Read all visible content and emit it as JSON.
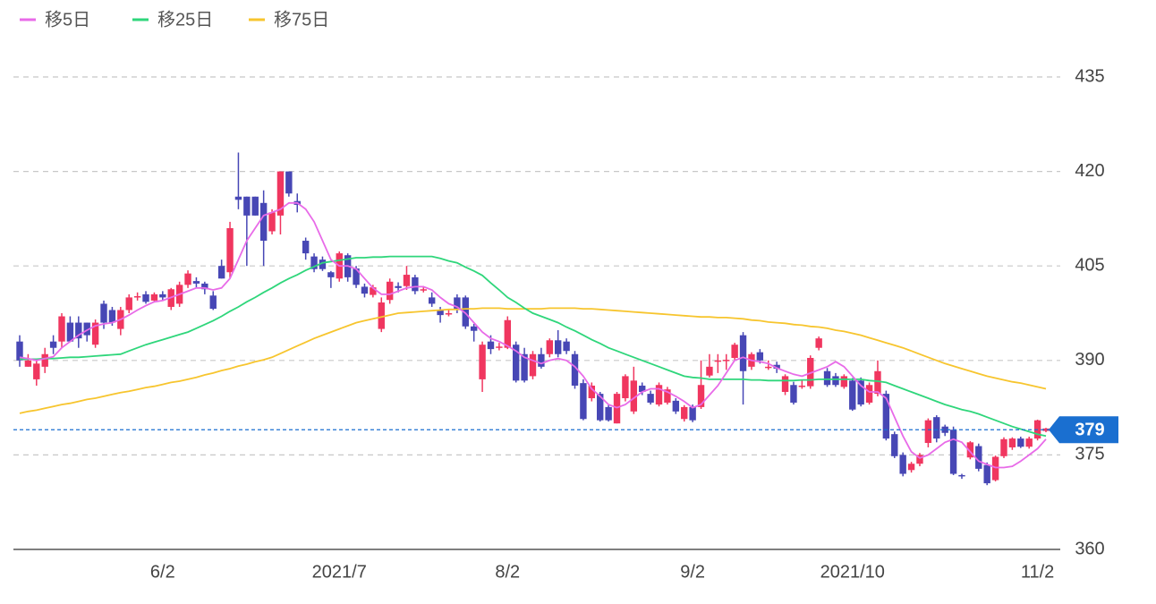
{
  "chart_data": {
    "type": "candlestick",
    "series": [
      {
        "name": "移5日",
        "color": "#e86be8",
        "values": [
          390.5,
          390.3,
          390,
          390.3,
          390.6,
          392,
          393,
          394,
          394.8,
          395.5,
          395.8,
          396,
          396.5,
          397.2,
          398,
          398.7,
          399.3,
          399.5,
          400,
          400.5,
          401,
          401.5,
          401.5,
          401.2,
          401.5,
          403,
          406,
          409,
          411,
          413,
          413.5,
          414,
          415,
          415,
          414,
          412,
          409,
          406,
          405,
          405,
          404.5,
          403,
          401.5,
          400.5,
          400.5,
          401,
          401.5,
          401.7,
          401.7,
          401.2,
          400,
          399,
          398.5,
          397.5,
          396,
          394.5,
          393.5,
          393,
          392.3,
          391.5,
          390.5,
          390,
          389.5,
          390,
          390.3,
          390,
          389,
          387.5,
          385.5,
          384.3,
          383,
          382.5,
          383,
          384,
          385,
          385.5,
          385.5,
          385,
          384.3,
          383.5,
          382.5,
          383,
          384.5,
          386,
          388,
          390,
          390.5,
          390,
          389.8,
          389.5,
          388.8,
          388.3,
          387.8,
          387.5,
          388,
          388.5,
          389,
          389.8,
          389,
          387.5,
          386,
          385,
          385,
          384,
          381,
          378,
          375.5,
          374.5,
          375,
          376,
          377,
          377.5,
          377,
          375.5,
          374,
          373.5,
          373,
          373,
          373.2,
          374,
          375,
          376,
          377.5
        ]
      },
      {
        "name": "移25日",
        "color": "#2fd67b",
        "values": [
          390.2,
          390.2,
          390.2,
          390.3,
          390.3,
          390.4,
          390.5,
          390.5,
          390.6,
          390.7,
          390.8,
          390.9,
          391,
          391.5,
          392,
          392.5,
          392.9,
          393.3,
          393.7,
          394.1,
          394.5,
          395.1,
          395.7,
          396.3,
          397,
          397.8,
          398.5,
          399.3,
          400,
          400.8,
          401.5,
          402.3,
          403,
          403.6,
          404.3,
          404.9,
          405.5,
          405.7,
          405.9,
          406.1,
          406.3,
          406.3,
          406.4,
          406.4,
          406.5,
          406.5,
          406.5,
          406.5,
          406.5,
          406.5,
          406.2,
          405.8,
          405.5,
          404.8,
          404.2,
          403.5,
          402.3,
          401.2,
          400,
          399.2,
          398.3,
          397.5,
          397,
          396.5,
          396,
          395.3,
          394.7,
          394,
          393.3,
          392.7,
          392,
          391.5,
          391,
          390.5,
          390,
          389.5,
          389,
          388.5,
          388,
          387.5,
          387.3,
          387.2,
          387,
          387,
          387,
          387,
          387,
          386.9,
          386.9,
          386.8,
          386.8,
          386.8,
          386.8,
          386.9,
          386.9,
          387,
          387,
          387,
          387,
          387,
          387,
          386.8,
          386.7,
          386.5,
          386,
          385.5,
          385,
          384.5,
          384,
          383.5,
          383,
          382.6,
          382.2,
          381.9,
          381.5,
          381,
          380.5,
          380,
          379.5,
          379.1,
          378.7,
          378.3,
          378
        ]
      },
      {
        "name": "移75日",
        "color": "#f7c52e",
        "values": [
          381.6,
          381.9,
          382.1,
          382.4,
          382.7,
          383,
          383.2,
          383.5,
          383.8,
          384,
          384.3,
          384.6,
          384.9,
          385.1,
          385.4,
          385.7,
          385.9,
          386.2,
          386.5,
          386.7,
          387,
          387.3,
          387.7,
          388,
          388.4,
          388.7,
          389.1,
          389.4,
          389.8,
          390.1,
          390.5,
          391.1,
          391.7,
          392.3,
          392.9,
          393.5,
          394,
          394.5,
          395,
          395.5,
          396,
          396.3,
          396.6,
          396.9,
          397.2,
          397.5,
          397.6,
          397.7,
          397.8,
          397.9,
          398,
          398.1,
          398.1,
          398.2,
          398.2,
          398.3,
          398.3,
          398.3,
          398.2,
          398.2,
          398.2,
          398.2,
          398.2,
          398.3,
          398.3,
          398.3,
          398.3,
          398.2,
          398.2,
          398.1,
          398,
          397.9,
          397.8,
          397.7,
          397.6,
          397.5,
          397.4,
          397.3,
          397.2,
          397.1,
          397,
          396.9,
          396.9,
          396.8,
          396.8,
          396.7,
          396.6,
          396.4,
          396.3,
          396.1,
          396,
          395.9,
          395.7,
          395.6,
          395.4,
          395.3,
          395.1,
          394.8,
          394.6,
          394.3,
          394,
          393.6,
          393.2,
          392.8,
          392.4,
          392,
          391.5,
          391,
          390.5,
          390,
          389.5,
          389.1,
          388.7,
          388.3,
          387.9,
          387.5,
          387.2,
          386.9,
          386.6,
          386.4,
          386.1,
          385.8,
          385.5
        ]
      }
    ],
    "candles": [
      [
        393,
        394,
        389,
        390
      ],
      [
        389,
        391,
        389,
        390
      ],
      [
        387,
        390,
        386,
        389.5
      ],
      [
        389,
        392,
        388,
        391
      ],
      [
        393,
        394,
        391,
        392
      ],
      [
        393,
        397.5,
        392,
        397
      ],
      [
        396,
        397,
        393,
        393
      ],
      [
        396,
        397,
        392,
        393.5
      ],
      [
        396,
        396,
        393,
        394
      ],
      [
        392.5,
        396.5,
        392,
        396
      ],
      [
        399,
        399.5,
        395,
        396
      ],
      [
        398,
        398.5,
        395.5,
        396
      ],
      [
        395,
        398.5,
        394,
        398
      ],
      [
        398,
        400.5,
        397.5,
        400
      ],
      [
        400,
        400.8,
        399.5,
        400.2
      ],
      [
        400.5,
        401,
        399,
        399.3
      ],
      [
        399.5,
        400.8,
        399.3,
        400.5
      ],
      [
        400.5,
        401,
        399.5,
        400
      ],
      [
        398.5,
        401.5,
        398,
        401.3
      ],
      [
        399,
        402.5,
        398.5,
        402
      ],
      [
        402,
        404.3,
        401.5,
        403.8
      ],
      [
        402.6,
        403.2,
        401.5,
        402.2
      ],
      [
        402.2,
        402.5,
        400.5,
        401.3
      ],
      [
        400.3,
        401,
        398,
        398.2
      ],
      [
        405,
        406,
        403,
        403
      ],
      [
        404,
        412,
        403,
        411
      ],
      [
        416,
        423,
        414,
        415.5
      ],
      [
        416,
        416,
        405,
        413
      ],
      [
        416,
        416,
        413,
        413
      ],
      [
        415,
        417,
        405,
        409
      ],
      [
        410.5,
        414,
        410,
        413.5
      ],
      [
        413,
        420,
        410,
        420
      ],
      [
        420,
        420,
        416,
        416.5
      ],
      [
        415.3,
        416.5,
        413.5,
        414.7
      ],
      [
        409,
        409.5,
        406,
        407
      ],
      [
        406.5,
        407,
        404,
        404.5
      ],
      [
        406,
        406.5,
        404.2,
        404.5
      ],
      [
        404,
        404.2,
        401.5,
        403.2
      ],
      [
        403,
        407.3,
        402.5,
        407
      ],
      [
        406.7,
        407,
        402.5,
        403.2
      ],
      [
        404.6,
        405,
        401.5,
        402
      ],
      [
        401.7,
        402.2,
        400,
        400.6
      ],
      [
        400.4,
        402,
        400,
        401.6
      ],
      [
        395,
        400,
        394.5,
        399.2
      ],
      [
        399.6,
        403,
        399,
        402.5
      ],
      [
        401.8,
        402.4,
        400.8,
        401.5
      ],
      [
        401.8,
        405,
        401.2,
        403.6
      ],
      [
        403.2,
        403.6,
        400.5,
        401
      ],
      [
        401.3,
        401.8,
        400.8,
        401.3
      ],
      [
        400,
        400.8,
        398.5,
        399
      ],
      [
        398,
        398.5,
        396,
        397.2
      ],
      [
        397.5,
        398,
        397,
        397.5
      ],
      [
        400,
        400.5,
        397.5,
        398
      ],
      [
        400,
        400.3,
        395,
        395.4
      ],
      [
        395.4,
        395.8,
        393,
        394.7
      ],
      [
        387,
        393,
        385,
        392.5
      ],
      [
        393,
        394,
        391,
        391.8
      ],
      [
        392,
        392.8,
        391.6,
        392.2
      ],
      [
        392,
        397,
        391.8,
        396.4
      ],
      [
        392.5,
        393,
        386.5,
        386.8
      ],
      [
        391,
        392,
        386.5,
        386.8
      ],
      [
        387.5,
        391.5,
        387,
        391
      ],
      [
        391,
        392,
        388.7,
        389
      ],
      [
        391,
        393.5,
        390.5,
        393.2
      ],
      [
        393.2,
        394.8,
        390.5,
        391
      ],
      [
        393,
        393.5,
        391,
        391.5
      ],
      [
        391,
        391.5,
        385.5,
        386
      ],
      [
        386.4,
        387,
        380.5,
        380.7
      ],
      [
        384,
        386.5,
        383.5,
        386
      ],
      [
        384.7,
        385,
        380.3,
        380.5
      ],
      [
        382.6,
        383,
        380.3,
        380.5
      ],
      [
        380,
        385,
        380,
        384.7
      ],
      [
        384,
        387.8,
        383.5,
        387.5
      ],
      [
        381.9,
        389,
        381.5,
        386.8
      ],
      [
        386,
        386.5,
        384.5,
        385
      ],
      [
        384.7,
        385.2,
        383,
        383.3
      ],
      [
        383,
        386.5,
        382.7,
        386.1
      ],
      [
        383.3,
        385.8,
        383,
        385.4
      ],
      [
        383.6,
        384,
        381.5,
        381.9
      ],
      [
        380.7,
        382.9,
        380.3,
        382.6
      ],
      [
        382.6,
        383,
        380.2,
        380.5
      ],
      [
        382.6,
        390,
        382.3,
        386.1
      ],
      [
        387.6,
        391,
        387.3,
        389
      ],
      [
        390,
        391,
        388,
        390
      ],
      [
        390.1,
        391,
        388.5,
        390.1
      ],
      [
        390.4,
        392.8,
        390,
        392.5
      ],
      [
        394,
        394.5,
        383,
        388.3
      ],
      [
        389,
        391.3,
        388.5,
        391
      ],
      [
        391.3,
        391.8,
        389.5,
        390
      ],
      [
        389,
        390,
        388.5,
        389
      ],
      [
        389.3,
        389.8,
        388,
        388.7
      ],
      [
        385,
        387.8,
        384.5,
        387.5
      ],
      [
        386.1,
        386.6,
        383,
        383.3
      ],
      [
        386,
        386.8,
        385.5,
        386
      ],
      [
        385.9,
        390.8,
        385.5,
        390.4
      ],
      [
        392,
        393.8,
        391.6,
        393.5
      ],
      [
        388.3,
        388.8,
        385.8,
        386.1
      ],
      [
        387.5,
        388,
        385.8,
        386.1
      ],
      [
        385.8,
        387.8,
        385.5,
        387.5
      ],
      [
        386.8,
        387.2,
        382,
        382.2
      ],
      [
        386.8,
        387.3,
        382.7,
        383
      ],
      [
        383.3,
        386.5,
        383,
        386.1
      ],
      [
        384.7,
        390,
        384.3,
        388.3
      ],
      [
        384.7,
        385.2,
        377.3,
        377.6
      ],
      [
        378.3,
        378.7,
        374.5,
        374.8
      ],
      [
        375,
        375.4,
        371.6,
        372
      ],
      [
        372.6,
        373.9,
        372.2,
        373.6
      ],
      [
        373.6,
        375.3,
        373.2,
        375
      ],
      [
        376.9,
        380.8,
        376.2,
        380.5
      ],
      [
        381,
        381.3,
        377,
        377.6
      ],
      [
        379.5,
        379.8,
        378,
        378.5
      ],
      [
        379,
        379.5,
        371.8,
        372
      ],
      [
        371.8,
        372,
        371.2,
        371.6
      ],
      [
        374.6,
        377.2,
        374.3,
        377
      ],
      [
        376.4,
        376.8,
        372.4,
        372.8
      ],
      [
        373.4,
        373.8,
        370.2,
        370.5
      ],
      [
        371,
        374.9,
        370.8,
        374.7
      ],
      [
        374.8,
        377.8,
        374.5,
        377.5
      ],
      [
        376.2,
        377.8,
        375.8,
        377.6
      ],
      [
        377.6,
        377.9,
        376.1,
        376.3
      ],
      [
        376.3,
        377.9,
        376,
        377.6
      ],
      [
        377.6,
        380.6,
        377.3,
        380.5
      ],
      [
        378.8,
        379.3,
        378.6,
        379.2
      ]
    ],
    "categories": [
      null,
      null,
      null,
      null,
      null,
      null,
      null,
      null,
      null,
      null,
      null,
      null,
      null,
      null,
      null,
      null,
      null,
      "6/2",
      null,
      null,
      null,
      null,
      null,
      null,
      null,
      null,
      null,
      null,
      null,
      null,
      null,
      null,
      null,
      null,
      null,
      null,
      null,
      null,
      "2021/7",
      null,
      null,
      null,
      null,
      null,
      null,
      null,
      null,
      null,
      null,
      null,
      null,
      null,
      null,
      null,
      null,
      null,
      null,
      null,
      "8/2",
      null,
      null,
      null,
      null,
      null,
      null,
      null,
      null,
      null,
      null,
      null,
      null,
      null,
      null,
      null,
      null,
      null,
      null,
      null,
      null,
      null,
      "9/2",
      null,
      null,
      null,
      null,
      null,
      null,
      null,
      null,
      null,
      null,
      null,
      null,
      null,
      null,
      null,
      null,
      null,
      null,
      "2021/10",
      null,
      null,
      null,
      null,
      null,
      null,
      null,
      null,
      null,
      null,
      null,
      null,
      null,
      null,
      null,
      null,
      null,
      null,
      null,
      null,
      null,
      "11/2",
      null
    ],
    "up_color": "#f0365f",
    "down_color": "#4747b5",
    "last_price": 379,
    "ylim": [
      360,
      440
    ],
    "yticks": [
      360,
      375,
      390,
      405,
      420,
      435
    ],
    "grid": true
  }
}
